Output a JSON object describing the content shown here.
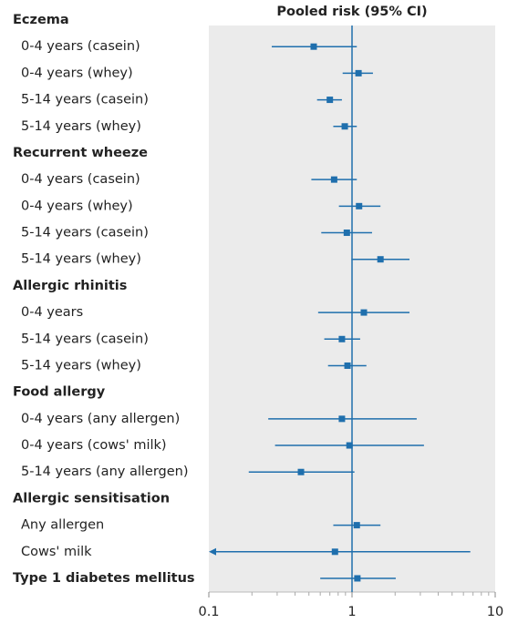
{
  "chart_data": {
    "type": "forest",
    "title": "Pooled risk (95% CI)",
    "log_x": true,
    "xlim": [
      0.1,
      10
    ],
    "xticks": [
      0.1,
      1,
      10
    ],
    "xminorticks": [
      0.2,
      0.3,
      0.4,
      0.5,
      0.6,
      0.7,
      0.8,
      0.9,
      2,
      3,
      4,
      5,
      6,
      7,
      8,
      9
    ],
    "reference": 1,
    "color": "#1f6fad",
    "panel_color": "#ebebeb",
    "groups": [
      {
        "name": "Eczema",
        "rows": [
          {
            "label": "0-4 years (casein)",
            "value": 0.54,
            "lower": 0.275,
            "upper": 1.08
          },
          {
            "label": "0-4 years (whey)",
            "value": 1.11,
            "lower": 0.86,
            "upper": 1.4
          },
          {
            "label": "5-14 years (casein)",
            "value": 0.7,
            "lower": 0.57,
            "upper": 0.85
          },
          {
            "label": "5-14 years (whey)",
            "value": 0.89,
            "lower": 0.74,
            "upper": 1.08
          }
        ]
      },
      {
        "name": "Recurrent wheeze",
        "rows": [
          {
            "label": "0-4 years (casein)",
            "value": 0.75,
            "lower": 0.52,
            "upper": 1.08
          },
          {
            "label": "0-4 years (whey)",
            "value": 1.12,
            "lower": 0.81,
            "upper": 1.58
          },
          {
            "label": "5-14 years (casein)",
            "value": 0.92,
            "lower": 0.61,
            "upper": 1.38
          },
          {
            "label": "5-14 years (whey)",
            "value": 1.58,
            "lower": 0.99,
            "upper": 2.52
          }
        ]
      },
      {
        "name": "Allergic rhinitis",
        "rows": [
          {
            "label": "0-4 years",
            "value": 1.21,
            "lower": 0.58,
            "upper": 2.52
          },
          {
            "label": "5-14 years (casein)",
            "value": 0.85,
            "lower": 0.64,
            "upper": 1.14
          },
          {
            "label": "5-14 years (whey)",
            "value": 0.93,
            "lower": 0.68,
            "upper": 1.26
          }
        ]
      },
      {
        "name": "Food allergy",
        "rows": [
          {
            "label": "0-4 years (any allergen)",
            "value": 0.85,
            "lower": 0.26,
            "upper": 2.83
          },
          {
            "label": "0-4 years (cows' milk)",
            "value": 0.96,
            "lower": 0.29,
            "upper": 3.18
          },
          {
            "label": "5-14 years (any allergen)",
            "value": 0.44,
            "lower": 0.19,
            "upper": 1.04
          }
        ]
      },
      {
        "name": "Allergic sensitisation",
        "rows": [
          {
            "label": "Any allergen",
            "value": 1.08,
            "lower": 0.74,
            "upper": 1.58
          },
          {
            "label": "Cows' milk",
            "value": 0.76,
            "lower": null,
            "upper": 6.7
          }
        ]
      },
      {
        "name": "Type 1 diabetes mellitus",
        "value": 1.09,
        "lower": 0.6,
        "upper": 2.02
      }
    ]
  }
}
